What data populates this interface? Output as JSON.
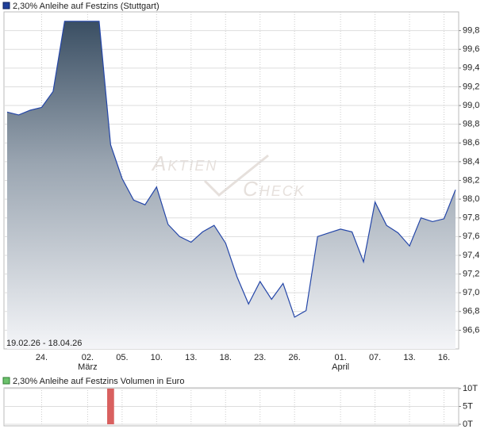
{
  "chart_data": [
    {
      "type": "area",
      "watermark": [
        "Aktien",
        "Check"
      ],
      "date_range": "19.02.26 - 18.04.26",
      "categories": [
        null,
        null,
        null,
        "24.",
        null,
        null,
        null,
        "02.",
        null,
        null,
        "05.",
        null,
        null,
        "10.",
        null,
        null,
        "13.",
        null,
        null,
        "18.",
        null,
        null,
        "23.",
        null,
        null,
        "26.",
        null,
        null,
        null,
        "01.",
        null,
        null,
        "07.",
        null,
        null,
        "13.",
        null,
        null,
        "16.",
        null
      ],
      "month_labels": [
        null,
        null,
        null,
        null,
        null,
        null,
        null,
        "März",
        null,
        null,
        null,
        null,
        null,
        null,
        null,
        null,
        null,
        null,
        null,
        null,
        null,
        null,
        null,
        null,
        null,
        null,
        null,
        null,
        null,
        "April",
        null,
        null,
        null,
        null,
        null,
        null,
        null,
        null,
        null,
        null
      ],
      "series": [
        {
          "name": "2,30% Anleihe auf Festzins (Stuttgart)",
          "color": "#2446a8",
          "values": [
            98.93,
            98.9,
            98.95,
            98.98,
            99.15,
            99.9,
            99.9,
            99.9,
            99.9,
            98.58,
            98.22,
            97.99,
            97.94,
            98.13,
            97.73,
            97.6,
            97.54,
            97.65,
            97.72,
            97.53,
            97.17,
            96.88,
            97.12,
            96.93,
            97.1,
            96.74,
            96.81,
            97.6,
            97.64,
            97.68,
            97.65,
            97.33,
            97.97,
            97.72,
            97.64,
            97.5,
            97.8,
            97.76,
            97.79,
            98.1
          ]
        }
      ],
      "ylim": [
        96.4,
        100.0
      ],
      "yticks": [
        {
          "value": 96.6,
          "label": "96,6"
        },
        {
          "value": 96.8,
          "label": "96,8"
        },
        {
          "value": 97.0,
          "label": "97,0"
        },
        {
          "value": 97.2,
          "label": "97,2"
        },
        {
          "value": 97.4,
          "label": "97,4"
        },
        {
          "value": 97.6,
          "label": "97,6"
        },
        {
          "value": 97.8,
          "label": "97,8"
        },
        {
          "value": 98.0,
          "label": "98,0"
        },
        {
          "value": 98.2,
          "label": "98,2"
        },
        {
          "value": 98.4,
          "label": "98,4"
        },
        {
          "value": 98.6,
          "label": "98,6"
        },
        {
          "value": 98.8,
          "label": "98,8"
        },
        {
          "value": 99.0,
          "label": "99,0"
        },
        {
          "value": 99.2,
          "label": "99,2"
        },
        {
          "value": 99.4,
          "label": "99,4"
        },
        {
          "value": 99.6,
          "label": "99,6"
        },
        {
          "value": 99.8,
          "label": "99,8"
        }
      ],
      "grid": true
    },
    {
      "type": "bar",
      "series": [
        {
          "name": "2,30% Anleihe auf Festzins Volumen in Euro",
          "color": "#d9605f",
          "values": [
            0,
            0,
            0,
            0,
            0,
            0,
            0,
            0,
            0,
            10,
            0,
            0,
            0,
            0,
            0,
            0,
            0,
            0,
            0,
            0,
            0,
            0,
            0,
            0,
            0,
            0,
            0,
            0,
            0,
            0,
            0,
            0,
            0,
            0,
            0,
            0,
            0,
            0,
            0,
            0
          ]
        }
      ],
      "ylim": [
        0,
        10
      ],
      "yticks": [
        {
          "value": 0,
          "label": "0T"
        },
        {
          "value": 5,
          "label": "5T"
        },
        {
          "value": 10,
          "label": "10T"
        }
      ],
      "grid": true
    }
  ]
}
